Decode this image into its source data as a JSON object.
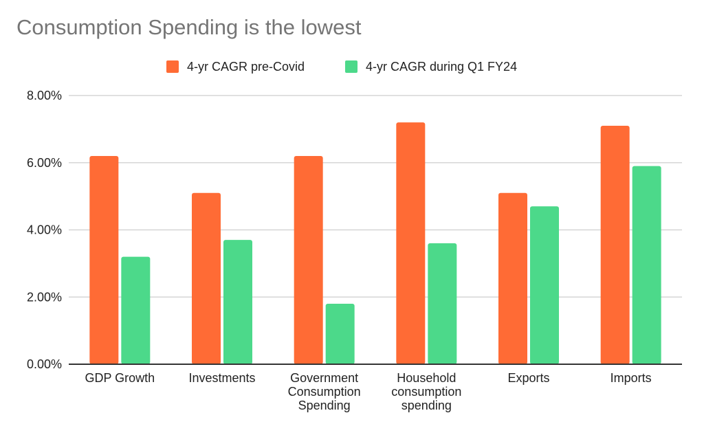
{
  "chart_data": {
    "type": "bar",
    "title": "Consumption Spending is the lowest",
    "categories": [
      [
        "GDP Growth"
      ],
      [
        "Investments"
      ],
      [
        "Government",
        "Consumption",
        "Spending"
      ],
      [
        "Household",
        "consumption",
        "spending"
      ],
      [
        "Exports"
      ],
      [
        "Imports"
      ]
    ],
    "series": [
      {
        "name": "4-yr CAGR pre-Covid",
        "color": "#ff6b35",
        "values": [
          6.2,
          5.1,
          6.2,
          7.2,
          5.1,
          7.1
        ]
      },
      {
        "name": "4-yr CAGR during Q1 FY24",
        "color": "#4cd98a",
        "values": [
          3.2,
          3.7,
          1.8,
          3.6,
          4.7,
          5.9
        ]
      }
    ],
    "ylim": [
      0,
      8
    ],
    "yticks": [
      "0.00%",
      "2.00%",
      "4.00%",
      "6.00%",
      "8.00%"
    ],
    "grid": true,
    "legend_position": "top"
  }
}
